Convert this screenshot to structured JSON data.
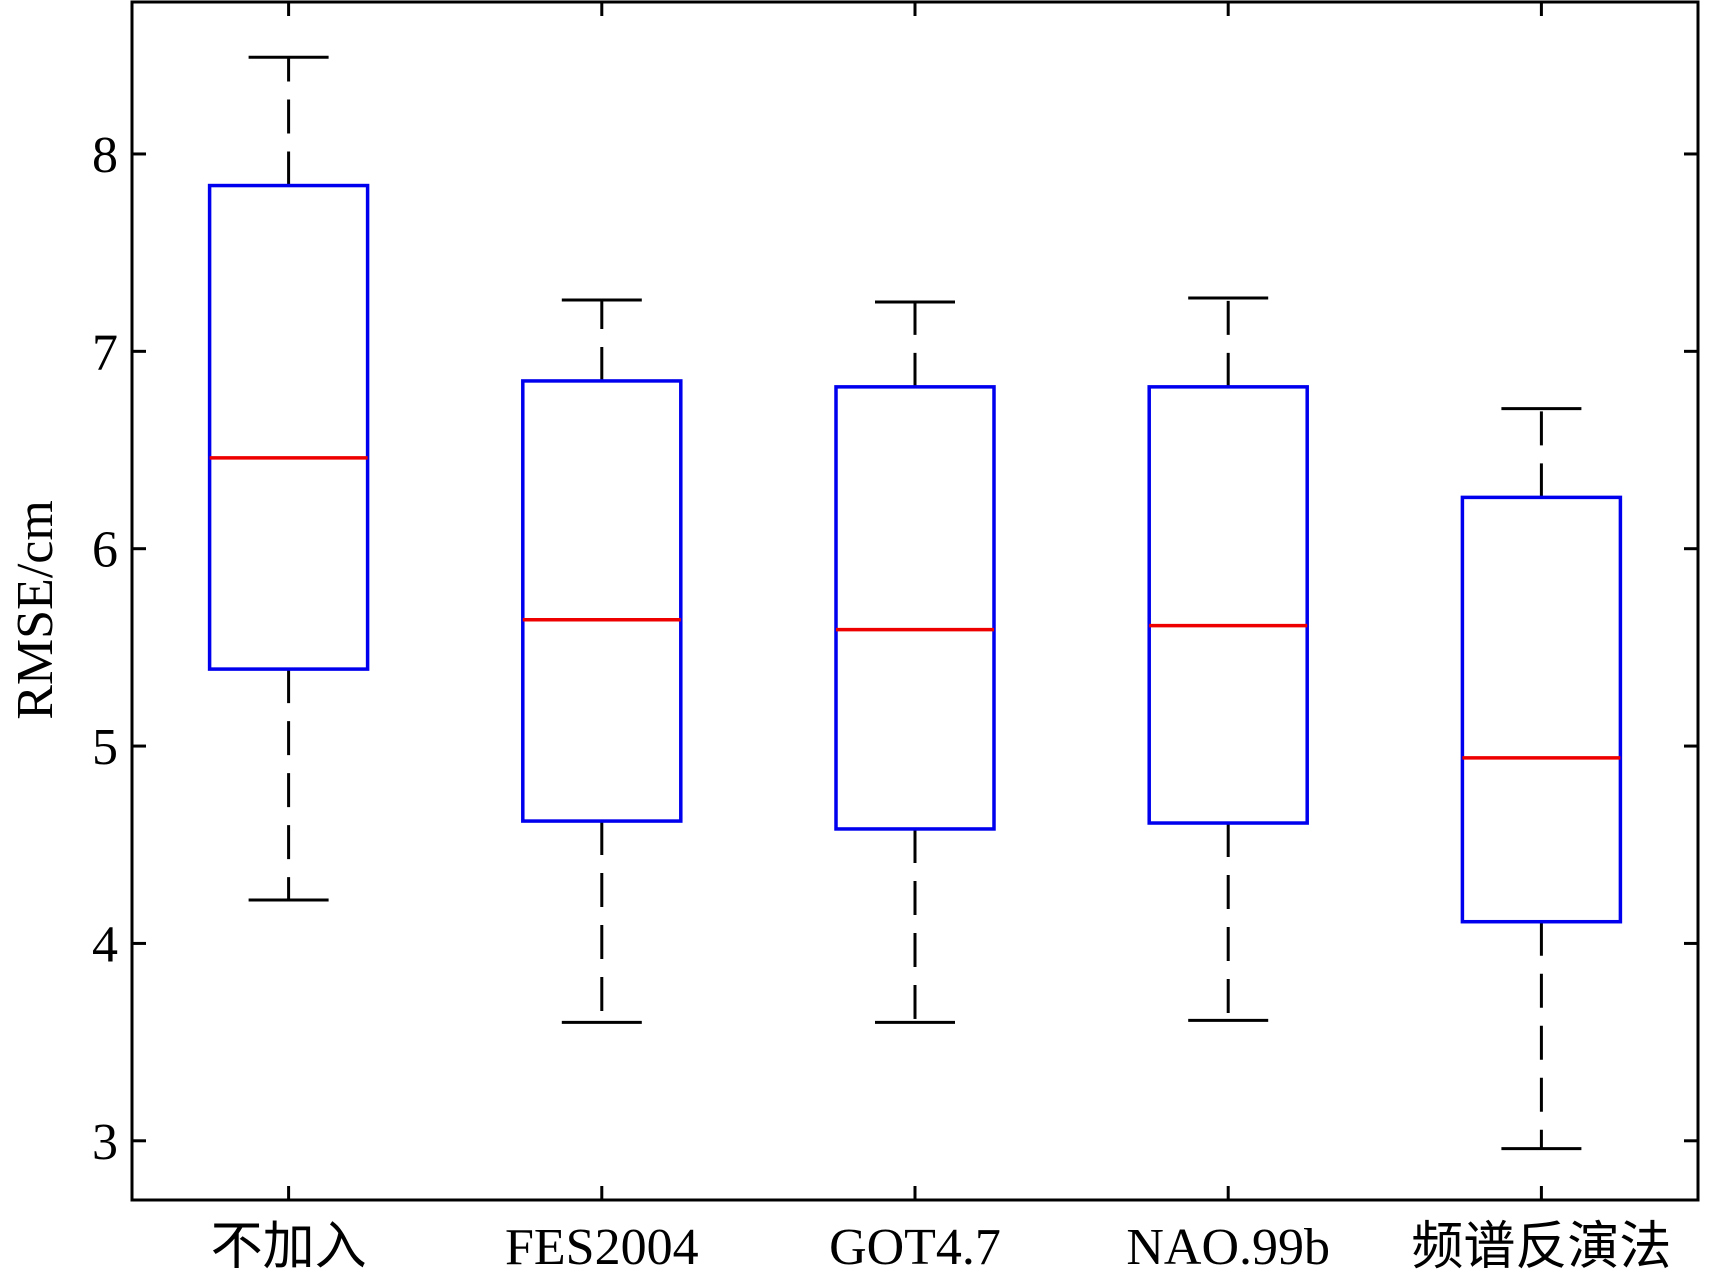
{
  "chart_data": {
    "type": "boxplot",
    "title": "",
    "xlabel": "",
    "ylabel": "RMSE/cm",
    "ylim": [
      2.7,
      8.77
    ],
    "yticks": [
      3,
      4,
      5,
      6,
      7,
      8
    ],
    "grid": false,
    "categories": [
      "不加入",
      "FES2004",
      "GOT4.7",
      "NAO.99b",
      "频谱反演法"
    ],
    "boxes": [
      {
        "label": "不加入",
        "whisker_low": 4.22,
        "q1": 5.39,
        "median": 6.46,
        "q3": 7.84,
        "whisker_high": 8.49
      },
      {
        "label": "FES2004",
        "whisker_low": 3.6,
        "q1": 4.62,
        "median": 5.64,
        "q3": 6.85,
        "whisker_high": 7.26
      },
      {
        "label": "GOT4.7",
        "whisker_low": 3.6,
        "q1": 4.58,
        "median": 5.59,
        "q3": 6.82,
        "whisker_high": 7.25
      },
      {
        "label": "NAO.99b",
        "whisker_low": 3.61,
        "q1": 4.61,
        "median": 5.61,
        "q3": 6.82,
        "whisker_high": 7.27
      },
      {
        "label": "频谱反演法",
        "whisker_low": 2.96,
        "q1": 4.11,
        "median": 4.94,
        "q3": 6.26,
        "whisker_high": 6.71
      }
    ],
    "colors": {
      "box": "#0000ee",
      "median": "#ee0000",
      "whisker": "#000000",
      "axis": "#000000"
    }
  }
}
